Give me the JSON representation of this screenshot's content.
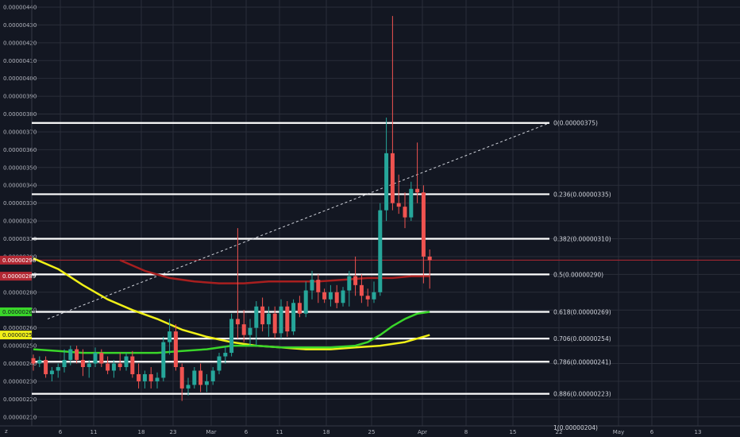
{
  "chart_data": {
    "type": "candlestick",
    "y_axis": {
      "ticks": [
        "0.00000210",
        "0.00000220",
        "0.00000230",
        "0.00000240",
        "0.00000250",
        "0.00000260",
        "0.00000270",
        "0.00000280",
        "0.00000290",
        "0.00000300",
        "0.00000310",
        "0.00000320",
        "0.00000330",
        "0.00000340",
        "0.00000350",
        "0.00000360",
        "0.00000370",
        "0.00000380",
        "0.00000390",
        "0.00000400",
        "0.00000410",
        "0.00000420",
        "0.00000430",
        "0.00000440"
      ],
      "range": [
        2.05e-06,
        4.44e-06
      ]
    },
    "x_axis": {
      "labels": [
        "6",
        "11",
        "18",
        "23",
        "Mar",
        "6",
        "11",
        "18",
        "25",
        "Apr",
        "8",
        "15",
        "22",
        "May",
        "6",
        "13"
      ]
    },
    "price_tags": [
      {
        "value": "0.00000298",
        "color": "#b22833",
        "text_color": "#ffffff"
      },
      {
        "value": "0.00000289",
        "color": "#b22833",
        "text_color": "#ffffff"
      },
      {
        "value": "0.00000269",
        "color": "#3ad62a",
        "text_color": "#131722"
      },
      {
        "value": "0.00000256",
        "color": "#f0f018",
        "text_color": "#131722"
      }
    ],
    "fib_levels": [
      {
        "ratio": "0",
        "price": "0.00000375",
        "text": "0(0.00000375)"
      },
      {
        "ratio": "0.236",
        "price": "0.00000335",
        "text": "0.236(0.00000335)"
      },
      {
        "ratio": "0.382",
        "price": "0.00000310",
        "text": "0.382(0.00000310)"
      },
      {
        "ratio": "0.5",
        "price": "0.00000290",
        "text": "0.5(0.00000290)"
      },
      {
        "ratio": "0.618",
        "price": "0.00000269",
        "text": "0.618(0.00000269)"
      },
      {
        "ratio": "0.706",
        "price": "0.00000254",
        "text": "0.706(0.00000254)"
      },
      {
        "ratio": "0.786",
        "price": "0.00000241",
        "text": "0.786(0.00000241)"
      },
      {
        "ratio": "0.886",
        "price": "0.00000223",
        "text": "0.886(0.00000223)"
      },
      {
        "ratio": "1",
        "price": "0.00000204",
        "text": "1(0.00000204)"
      }
    ],
    "current_price_line": 2.98e-06,
    "trend_line": {
      "from": [
        0.0,
        0.0
      ]
    },
    "candles": [
      [
        2.43e-06,
        2.45e-06,
        2.36e-06,
        2.4e-06
      ],
      [
        2.4e-06,
        2.44e-06,
        2.38e-06,
        2.42e-06
      ],
      [
        2.42e-06,
        2.44e-06,
        2.32e-06,
        2.34e-06
      ],
      [
        2.34e-06,
        2.38e-06,
        2.3e-06,
        2.36e-06
      ],
      [
        2.36e-06,
        2.4e-06,
        2.32e-06,
        2.38e-06
      ],
      [
        2.38e-06,
        2.48e-06,
        2.35e-06,
        2.42e-06
      ],
      [
        2.42e-06,
        2.5e-06,
        2.39e-06,
        2.48e-06
      ],
      [
        2.48e-06,
        2.5e-06,
        2.4e-06,
        2.42e-06
      ],
      [
        2.42e-06,
        2.48e-06,
        2.33e-06,
        2.38e-06
      ],
      [
        2.38e-06,
        2.42e-06,
        2.32e-06,
        2.4e-06
      ],
      [
        2.4e-06,
        2.49e-06,
        2.38e-06,
        2.46e-06
      ],
      [
        2.46e-06,
        2.48e-06,
        2.38e-06,
        2.4e-06
      ],
      [
        2.4e-06,
        2.44e-06,
        2.34e-06,
        2.36e-06
      ],
      [
        2.36e-06,
        2.42e-06,
        2.32e-06,
        2.4e-06
      ],
      [
        2.4e-06,
        2.46e-06,
        2.36e-06,
        2.38e-06
      ],
      [
        2.38e-06,
        2.46e-06,
        2.36e-06,
        2.44e-06
      ],
      [
        2.44e-06,
        2.47e-06,
        2.32e-06,
        2.34e-06
      ],
      [
        2.34e-06,
        2.4e-06,
        2.26e-06,
        2.3e-06
      ],
      [
        2.3e-06,
        2.36e-06,
        2.26e-06,
        2.34e-06
      ],
      [
        2.34e-06,
        2.38e-06,
        2.26e-06,
        2.3e-06
      ],
      [
        2.3e-06,
        2.35e-06,
        2.26e-06,
        2.32e-06
      ],
      [
        2.32e-06,
        2.55e-06,
        2.3e-06,
        2.52e-06
      ],
      [
        2.52e-06,
        2.65e-06,
        2.45e-06,
        2.58e-06
      ],
      [
        2.58e-06,
        2.62e-06,
        2.36e-06,
        2.38e-06
      ],
      [
        2.38e-06,
        2.4e-06,
        2.19e-06,
        2.26e-06
      ],
      [
        2.26e-06,
        2.32e-06,
        2.22e-06,
        2.28e-06
      ],
      [
        2.28e-06,
        2.38e-06,
        2.26e-06,
        2.36e-06
      ],
      [
        2.36e-06,
        2.4e-06,
        2.24e-06,
        2.28e-06
      ],
      [
        2.28e-06,
        2.34e-06,
        2.24e-06,
        2.3e-06
      ],
      [
        2.3e-06,
        2.38e-06,
        2.28e-06,
        2.36e-06
      ],
      [
        2.36e-06,
        2.46e-06,
        2.34e-06,
        2.44e-06
      ],
      [
        2.44e-06,
        2.5e-06,
        2.4e-06,
        2.46e-06
      ],
      [
        2.46e-06,
        2.68e-06,
        2.44e-06,
        2.65e-06
      ],
      [
        2.65e-06,
        3.16e-06,
        2.54e-06,
        2.62e-06
      ],
      [
        2.62e-06,
        2.7e-06,
        2.52e-06,
        2.56e-06
      ],
      [
        2.56e-06,
        2.65e-06,
        2.5e-06,
        2.6e-06
      ],
      [
        2.6e-06,
        2.75e-06,
        2.5e-06,
        2.72e-06
      ],
      [
        2.72e-06,
        2.77e-06,
        2.58e-06,
        2.62e-06
      ],
      [
        2.62e-06,
        2.72e-06,
        2.55e-06,
        2.68e-06
      ],
      [
        2.68e-06,
        2.72e-06,
        2.54e-06,
        2.57e-06
      ],
      [
        2.57e-06,
        2.76e-06,
        2.54e-06,
        2.72e-06
      ],
      [
        2.72e-06,
        2.75e-06,
        2.55e-06,
        2.58e-06
      ],
      [
        2.58e-06,
        2.76e-06,
        2.56e-06,
        2.74e-06
      ],
      [
        2.74e-06,
        2.78e-06,
        2.66e-06,
        2.68e-06
      ],
      [
        2.68e-06,
        2.86e-06,
        2.66e-06,
        2.81e-06
      ],
      [
        2.81e-06,
        2.92e-06,
        2.76e-06,
        2.87e-06
      ],
      [
        2.87e-06,
        2.9e-06,
        2.74e-06,
        2.8e-06
      ],
      [
        2.8e-06,
        2.82e-06,
        2.74e-06,
        2.76e-06
      ],
      [
        2.76e-06,
        2.84e-06,
        2.72e-06,
        2.8e-06
      ],
      [
        2.8e-06,
        2.84e-06,
        2.71e-06,
        2.74e-06
      ],
      [
        2.74e-06,
        2.83e-06,
        2.72e-06,
        2.81e-06
      ],
      [
        2.81e-06,
        2.92e-06,
        2.72e-06,
        2.89e-06
      ],
      [
        2.89e-06,
        3e-06,
        2.78e-06,
        2.84e-06
      ],
      [
        2.84e-06,
        2.9e-06,
        2.74e-06,
        2.78e-06
      ],
      [
        2.78e-06,
        2.82e-06,
        2.72e-06,
        2.76e-06
      ],
      [
        2.76e-06,
        2.86e-06,
        2.74e-06,
        2.8e-06
      ],
      [
        2.8e-06,
        3.3e-06,
        2.78e-06,
        3.26e-06
      ],
      [
        3.26e-06,
        3.78e-06,
        3.2e-06,
        3.58e-06
      ],
      [
        3.58e-06,
        4.35e-06,
        3.26e-06,
        3.3e-06
      ],
      [
        3.3e-06,
        3.46e-06,
        3.24e-06,
        3.28e-06
      ],
      [
        3.28e-06,
        3.36e-06,
        3.16e-06,
        3.22e-06
      ],
      [
        3.22e-06,
        3.42e-06,
        3.2e-06,
        3.38e-06
      ],
      [
        3.38e-06,
        3.64e-06,
        3.3e-06,
        3.36e-06
      ],
      [
        3.36e-06,
        3.4e-06,
        2.85e-06,
        3e-06
      ],
      [
        3e-06,
        3.04e-06,
        2.82e-06,
        2.98e-06
      ]
    ],
    "moving_averages": [
      {
        "name": "",
        "color": "#a81f1f",
        "points": [
          [
            14,
            2.98e-06
          ],
          [
            18,
            2.92e-06
          ],
          [
            22,
            2.88e-06
          ],
          [
            26,
            2.86e-06
          ],
          [
            30,
            2.85e-06
          ],
          [
            34,
            2.85e-06
          ],
          [
            38,
            2.86e-06
          ],
          [
            42,
            2.86e-06
          ],
          [
            46,
            2.86e-06
          ],
          [
            50,
            2.87e-06
          ],
          [
            54,
            2.88e-06
          ],
          [
            58,
            2.88e-06
          ],
          [
            61,
            2.89e-06
          ],
          [
            64,
            2.89e-06
          ]
        ]
      },
      {
        "name": "",
        "color": "#f0f018",
        "points": [
          [
            0,
            2.99e-06
          ],
          [
            4,
            2.93e-06
          ],
          [
            8,
            2.84e-06
          ],
          [
            12,
            2.76e-06
          ],
          [
            16,
            2.7e-06
          ],
          [
            20,
            2.65e-06
          ],
          [
            24,
            2.59e-06
          ],
          [
            28,
            2.55e-06
          ],
          [
            32,
            2.52e-06
          ],
          [
            36,
            2.5e-06
          ],
          [
            40,
            2.49e-06
          ],
          [
            44,
            2.48e-06
          ],
          [
            48,
            2.48e-06
          ],
          [
            52,
            2.49e-06
          ],
          [
            56,
            2.5e-06
          ],
          [
            60,
            2.52e-06
          ],
          [
            64,
            2.56e-06
          ]
        ]
      },
      {
        "name": "",
        "color": "#3ad62a",
        "points": [
          [
            0,
            2.48e-06
          ],
          [
            4,
            2.47e-06
          ],
          [
            8,
            2.46e-06
          ],
          [
            12,
            2.46e-06
          ],
          [
            16,
            2.46e-06
          ],
          [
            20,
            2.46e-06
          ],
          [
            24,
            2.47e-06
          ],
          [
            28,
            2.48e-06
          ],
          [
            32,
            2.5e-06
          ],
          [
            36,
            2.5e-06
          ],
          [
            40,
            2.49e-06
          ],
          [
            44,
            2.49e-06
          ],
          [
            48,
            2.49e-06
          ],
          [
            52,
            2.5e-06
          ],
          [
            54,
            2.52e-06
          ],
          [
            56,
            2.56e-06
          ],
          [
            58,
            2.61e-06
          ],
          [
            60,
            2.65e-06
          ],
          [
            62,
            2.68e-06
          ],
          [
            64,
            2.69e-06
          ]
        ]
      }
    ],
    "colors": {
      "up": "#26a69a",
      "down": "#ef5350",
      "grid": "#2a2e39",
      "fib_line": "#ffffff",
      "current_line": "#b22833"
    }
  }
}
